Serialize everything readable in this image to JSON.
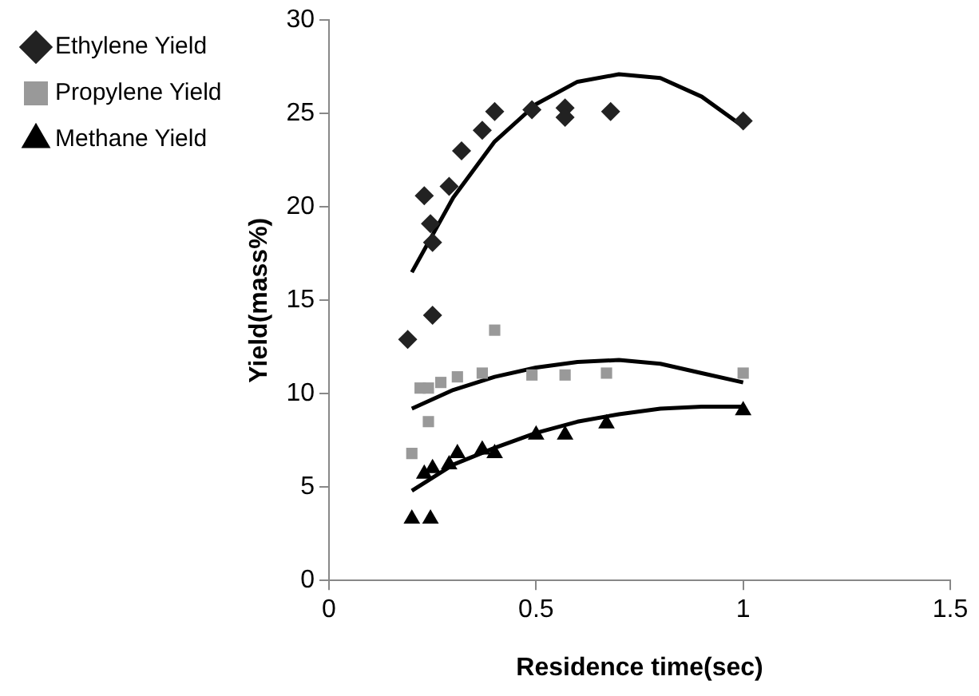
{
  "chart_data": {
    "type": "scatter",
    "xlabel": "Residence time(sec)",
    "ylabel": "Yield(mass%)",
    "xlim": [
      0,
      1.5
    ],
    "xticks": [
      0,
      0.5,
      1,
      1.5
    ],
    "ylim": [
      0,
      30
    ],
    "yticks": [
      0,
      5,
      10,
      15,
      20,
      25,
      30
    ],
    "grid": false,
    "legend": "top left",
    "series": [
      {
        "name": "Ethylene Yield",
        "color": "#222222",
        "marker": "diamond",
        "x": [
          0.19,
          0.25,
          0.23,
          0.245,
          0.25,
          0.29,
          0.32,
          0.37,
          0.4,
          0.49,
          0.57,
          0.57,
          0.68,
          1.0
        ],
        "values": [
          12.9,
          14.2,
          20.6,
          19.1,
          18.1,
          21.1,
          23,
          24.1,
          25.1,
          25.2,
          25.3,
          24.8,
          25.1,
          24.6
        ]
      },
      {
        "name": "Propylene Yield",
        "color": "#999999",
        "marker": "square",
        "x": [
          0.2,
          0.24,
          0.22,
          0.24,
          0.27,
          0.31,
          0.37,
          0.4,
          0.49,
          0.57,
          0.67,
          1.0
        ],
        "values": [
          6.8,
          8.5,
          10.3,
          10.3,
          10.6,
          10.9,
          11.1,
          13.4,
          11.0,
          11.0,
          11.1,
          11.1
        ]
      },
      {
        "name": "Methane Yield",
        "color": "#000000",
        "marker": "triangle",
        "x": [
          0.2,
          0.245,
          0.23,
          0.25,
          0.29,
          0.31,
          0.37,
          0.4,
          0.5,
          0.57,
          0.67,
          1.0
        ],
        "values": [
          3.3,
          3.3,
          5.7,
          6.0,
          6.2,
          6.8,
          7.0,
          6.8,
          7.8,
          7.8,
          8.4,
          9.1
        ]
      },
      {
        "type": "line",
        "color": "#000000",
        "marker": "none",
        "x": [
          0.2,
          0.3,
          0.4,
          0.5,
          0.6,
          0.7,
          0.8,
          0.9,
          1.0
        ],
        "values": [
          16.5,
          20.5,
          23.5,
          25.5,
          26.7,
          27.1,
          26.9,
          25.9,
          24.3
        ]
      },
      {
        "type": "line",
        "color": "#000000",
        "marker": "none",
        "x": [
          0.2,
          0.3,
          0.4,
          0.5,
          0.6,
          0.7,
          0.8,
          0.9,
          1.0
        ],
        "values": [
          9.2,
          10.2,
          10.9,
          11.4,
          11.7,
          11.8,
          11.6,
          11.1,
          10.6
        ]
      },
      {
        "type": "line",
        "color": "#000000",
        "marker": "none",
        "x": [
          0.2,
          0.3,
          0.4,
          0.5,
          0.6,
          0.7,
          0.8,
          0.9,
          1.0
        ],
        "values": [
          4.8,
          6.2,
          7.1,
          7.9,
          8.5,
          8.9,
          9.2,
          9.3,
          9.3
        ]
      }
    ]
  }
}
